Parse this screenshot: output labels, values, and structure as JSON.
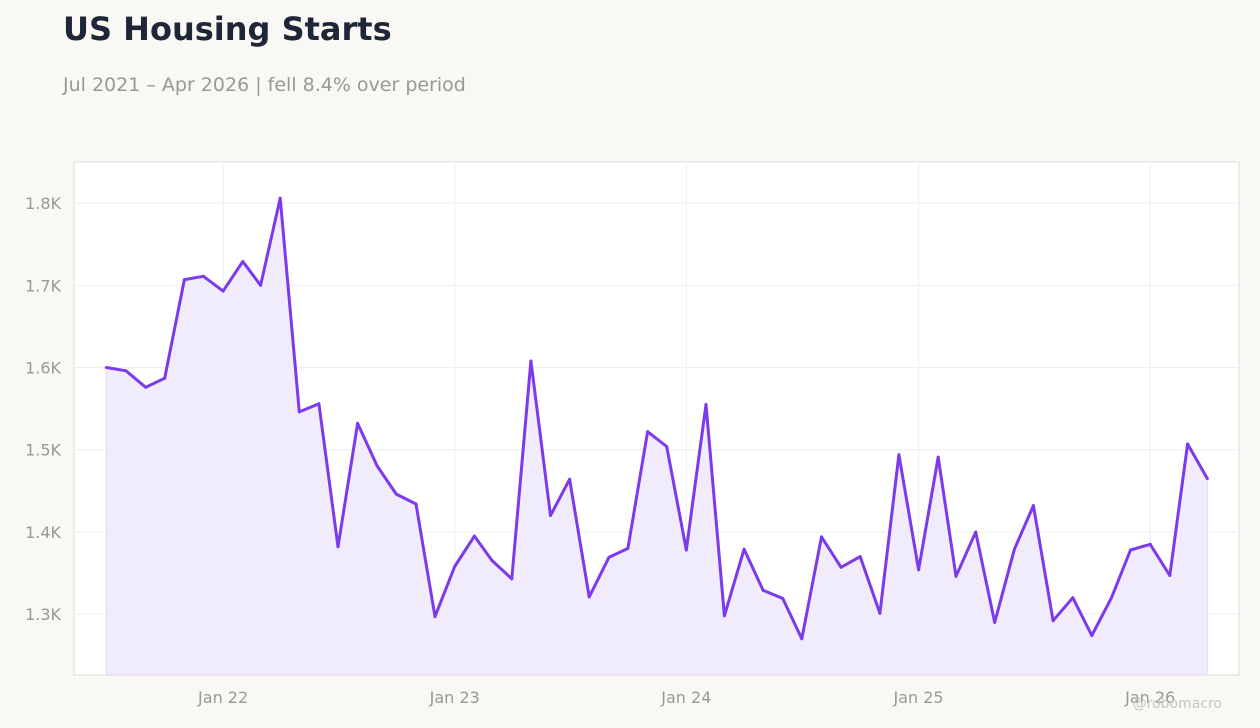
{
  "header": {
    "title": "US Housing Starts",
    "subtitle": "Jul 2021 – Apr 2026 | fell 8.4% over period"
  },
  "watermark": "@robomacro",
  "colors": {
    "background": "#f9f8f5",
    "plot_background": "#ffffff",
    "line": "#7c3aed",
    "fill": "#f1ecfc",
    "grid": "#eeeeee",
    "text_muted": "#9a9893",
    "title": "#1e2638"
  },
  "chart_data": {
    "type": "area",
    "title": "US Housing Starts",
    "subtitle": "Jul 2021 – Apr 2026 | fell 8.4% over period",
    "xlabel": "",
    "ylabel": "",
    "grid": true,
    "legend": "none",
    "ylim": [
      1226,
      1850
    ],
    "xlim": [
      "2021-05-11",
      "2026-05-21"
    ],
    "y_ticks": [
      1300,
      1400,
      1500,
      1600,
      1700,
      1800
    ],
    "y_tick_labels": [
      "1.3K",
      "1.4K",
      "1.5K",
      "1.6K",
      "1.7K",
      "1.8K"
    ],
    "x_ticks": [
      "2022-01-01",
      "2023-01-01",
      "2024-01-01",
      "2025-01-01",
      "2026-01-01"
    ],
    "x_tick_labels": [
      "Jan 22",
      "Jan 23",
      "Jan 24",
      "Jan 25",
      "Jan 26"
    ],
    "series": [
      {
        "x": [
          "2021-07-01",
          "2021-08-01",
          "2021-09-01",
          "2021-10-01",
          "2021-11-01",
          "2021-12-01",
          "2022-01-01",
          "2022-02-01",
          "2022-03-01",
          "2022-04-01",
          "2022-05-01",
          "2022-06-01",
          "2022-07-01",
          "2022-08-01",
          "2022-09-01",
          "2022-10-01",
          "2022-11-01",
          "2022-12-01",
          "2023-01-01",
          "2023-02-01",
          "2023-03-01",
          "2023-04-01",
          "2023-05-01",
          "2023-06-01",
          "2023-07-01",
          "2023-08-01",
          "2023-09-01",
          "2023-10-01",
          "2023-11-01",
          "2023-12-01",
          "2024-01-01",
          "2024-02-01",
          "2024-03-01",
          "2024-04-01",
          "2024-05-01",
          "2024-06-01",
          "2024-07-01",
          "2024-08-01",
          "2024-09-01",
          "2024-10-01",
          "2024-11-01",
          "2024-12-01",
          "2025-01-01",
          "2025-02-01",
          "2025-03-01",
          "2025-04-01",
          "2025-05-01",
          "2025-06-01",
          "2025-07-01",
          "2025-08-01",
          "2025-09-01",
          "2025-10-01",
          "2025-11-01",
          "2025-12-01",
          "2026-01-01",
          "2026-02-01",
          "2026-03-01",
          "2026-04-01"
        ],
        "values": [
          1600,
          1596,
          1576,
          1587,
          1707,
          1711,
          1693,
          1729,
          1700,
          1806,
          1546,
          1556,
          1382,
          1532,
          1480,
          1446,
          1434,
          1297,
          1358,
          1395,
          1365,
          1343,
          1608,
          1420,
          1464,
          1321,
          1369,
          1380,
          1522,
          1504,
          1378,
          1555,
          1298,
          1379,
          1329,
          1319,
          1270,
          1394,
          1357,
          1370,
          1301,
          1494,
          1354,
          1491,
          1346,
          1400,
          1290,
          1379,
          1432,
          1292,
          1320,
          1274,
          1320,
          1378,
          1385,
          1347,
          1507,
          1465
        ]
      }
    ]
  }
}
